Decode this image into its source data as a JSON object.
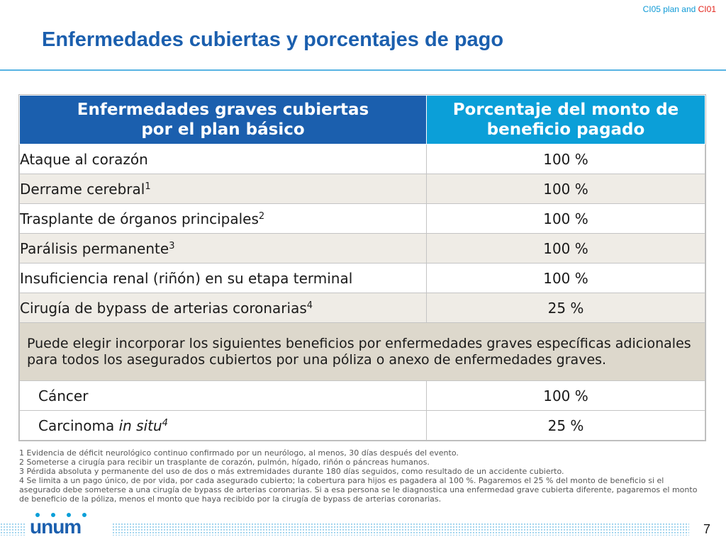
{
  "header": {
    "plan_tag_prefix": "CI05 plan and ",
    "plan_tag_red": "CI01",
    "title": "Enfermedades cubiertas y porcentajes de pago"
  },
  "table": {
    "headers": [
      [
        "Enfermedades graves cubiertas",
        "por el plan básico"
      ],
      [
        "Porcentaje del monto de",
        "beneficio pagado"
      ]
    ],
    "rows": [
      {
        "label": "Ataque al corazón",
        "sup": "",
        "value": "100 %"
      },
      {
        "label": "Derrame cerebral",
        "sup": "1",
        "value": "100 %"
      },
      {
        "label": "Trasplante de órganos principales",
        "sup": "2",
        "value": "100 %"
      },
      {
        "label": "Parálisis permanente",
        "sup": "3",
        "value": "100 %"
      },
      {
        "label": "Insuficiencia renal (riñón) en su etapa terminal",
        "sup": "",
        "value": "100 %"
      },
      {
        "label": "Cirugía de bypass de arterias coronarias",
        "sup": "4",
        "value": "25 %"
      }
    ],
    "note": "Puede elegir incorporar los siguientes beneficios por enfermedades graves específicas adicionales para todos los asegurados cubiertos por una póliza o anexo de enfermedades graves.",
    "extra_rows": [
      {
        "label": "Cáncer",
        "value": "100 %"
      },
      {
        "label_plain": "Carcinoma ",
        "label_italic": "in situ",
        "sup": "4",
        "value": "25 %"
      }
    ]
  },
  "footnotes": [
    "1 Evidencia de déficit neurológico continuo confirmado por un neurólogo, al menos, 30 días después del evento.",
    "2 Someterse a cirugía para recibir un trasplante de corazón, pulmón, hígado, riñón o páncreas humanos.",
    "3 Pérdida absoluta y permanente del uso de dos o más extremidades durante 180 días seguidos, como resultado de un accidente cubierto.",
    "4 Se limita a un pago único, de por vida, por cada asegurado cubierto; la cobertura para hijos es pagadera al 100 %. Pagaremos el 25 % del monto de beneficio si el asegurado debe someterse a una cirugía de bypass de arterias coronarias. Si a esa persona se le diagnostica una enfermedad grave cubierta diferente, pagaremos el monto de beneficio de la póliza, menos el monto que haya recibido por la cirugía de bypass de arterias coronarias."
  ],
  "footer": {
    "logo_text": "unum",
    "page_number": "7"
  },
  "colors": {
    "title_blue": "#1b5fae",
    "header_blue": "#1b5fae",
    "header_cyan": "#0b9fd8",
    "accent_red": "#e3241b"
  }
}
